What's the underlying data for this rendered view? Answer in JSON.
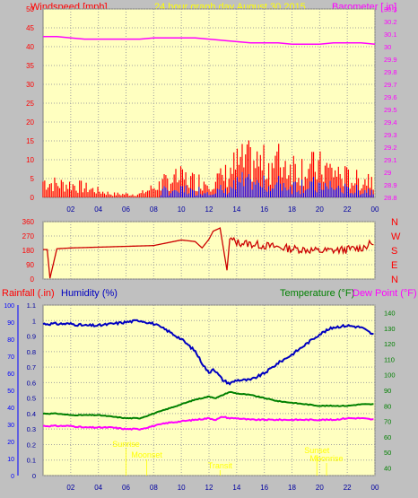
{
  "header": {
    "left_label": "Windspeed [mph]",
    "title": "24 hour graph day   August 30 2015",
    "right_label": "Barometer [.in]"
  },
  "colors": {
    "plot_bg": "#ffffc0",
    "frame_bg": "#c0c0c0",
    "wind": "#ff0000",
    "gust_overlay": "#0000ff",
    "barometer": "#ff00ff",
    "direction": "#cc0000",
    "humidity": "#0000c0",
    "temperature": "#008000",
    "dewpoint": "#ff00ff",
    "rain_axis": "#0000ff",
    "temp_axis": "#008000",
    "annotation": "#ffff00"
  },
  "chart_data": [
    {
      "type": "line",
      "panel": "wind-barometer",
      "x_ticks": [
        "02",
        "04",
        "06",
        "08",
        "10",
        "12",
        "14",
        "16",
        "18",
        "20",
        "22",
        "00"
      ],
      "ylim_left": [
        0,
        50
      ],
      "yticks_left": [
        "0",
        "5",
        "10",
        "15",
        "20",
        "25",
        "30",
        "35",
        "40",
        "45",
        "50"
      ],
      "ylim_right": [
        28.8,
        30.3
      ],
      "yticks_right": [
        "28.8",
        "28.9",
        "29",
        "29.1",
        "29.2",
        "29.3",
        "29.4",
        "29.5",
        "29.6",
        "29.7",
        "29.8",
        "29.9",
        "30",
        "30.1",
        "30.2",
        "30.3"
      ],
      "grid": true,
      "series": [
        {
          "name": "Barometer [.in]",
          "axis": "right",
          "x_hours": [
            0,
            1,
            2,
            3,
            4,
            5,
            6,
            7,
            8,
            9,
            10,
            11,
            12,
            13,
            14,
            15,
            16,
            17,
            18,
            19,
            20,
            21,
            22,
            23,
            24
          ],
          "values": [
            30.08,
            30.08,
            30.07,
            30.06,
            30.06,
            30.06,
            30.06,
            30.06,
            30.07,
            30.07,
            30.07,
            30.07,
            30.06,
            30.05,
            30.04,
            30.03,
            30.03,
            30.03,
            30.02,
            30.02,
            30.02,
            30.03,
            30.03,
            30.03,
            30.02
          ]
        },
        {
          "name": "Windspeed [mph]",
          "axis": "left",
          "style": "bars",
          "x_hours": [
            0,
            1,
            2,
            3,
            4,
            5,
            6,
            7,
            8,
            9,
            10,
            11,
            12,
            13,
            14,
            15,
            16,
            17,
            18,
            19,
            20,
            21,
            22,
            23,
            24
          ],
          "values": [
            5,
            4,
            4,
            3,
            2,
            1,
            1,
            1,
            3,
            5,
            6,
            5,
            5,
            6,
            10,
            11,
            10,
            11,
            10,
            9,
            9,
            8,
            6,
            5,
            7
          ]
        }
      ]
    },
    {
      "type": "line",
      "panel": "wind-direction",
      "x_ticks": [
        "02",
        "04",
        "06",
        "08",
        "10",
        "12",
        "14",
        "16",
        "18",
        "20",
        "22",
        "00"
      ],
      "ylim": [
        0,
        360
      ],
      "yticks": [
        "0",
        "90",
        "180",
        "270",
        "360"
      ],
      "direction_labels": [
        "N",
        "W",
        "S",
        "E",
        "N"
      ],
      "series": [
        {
          "name": "Wind direction",
          "x_hours": [
            0,
            0.3,
            0.5,
            1,
            2,
            4,
            6,
            8,
            10,
            11,
            11.5,
            12,
            12.3,
            12.8,
            13.3,
            13.5,
            14,
            15,
            16,
            17,
            18,
            19,
            20,
            21,
            22,
            23,
            24
          ],
          "values": [
            185,
            185,
            5,
            190,
            195,
            200,
            205,
            210,
            245,
            235,
            195,
            250,
            300,
            320,
            55,
            250,
            230,
            220,
            210,
            200,
            190,
            185,
            175,
            180,
            185,
            195,
            230
          ]
        }
      ]
    },
    {
      "type": "line",
      "panel": "rain-humidity-temperature",
      "x_ticks": [
        "02",
        "04",
        "06",
        "08",
        "10",
        "12",
        "14",
        "16",
        "18",
        "20",
        "22",
        "00"
      ],
      "ylim_rain": [
        0,
        1.1
      ],
      "yticks_rain": [
        "0",
        "0.1",
        "0.2",
        "0.3",
        "0.4",
        "0.5",
        "0.6",
        "0.7",
        "0.8",
        "0.9",
        "1",
        "1.1"
      ],
      "ylim_humidity": [
        0,
        100
      ],
      "yticks_humidity": [
        "0",
        "10",
        "20",
        "30",
        "40",
        "50",
        "60",
        "70",
        "80",
        "90",
        "100"
      ],
      "ylim_temp": [
        35,
        145
      ],
      "yticks_temp": [
        "40",
        "50",
        "60",
        "70",
        "80",
        "90",
        "100",
        "110",
        "120",
        "130",
        "140"
      ],
      "labels": {
        "rain": "Rainfall (.in)",
        "humidity": "Humidity (%)",
        "temperature": "Temperature (°F)",
        "dewpoint": "Dew Point (°F)"
      },
      "annotations": [
        {
          "text": "Sunrise",
          "x_hour": 6.0
        },
        {
          "text": "Moonset",
          "x_hour": 7.5
        },
        {
          "text": "Transit",
          "x_hour": 12.8
        },
        {
          "text": "Sunset",
          "x_hour": 19.8
        },
        {
          "text": "Moonrise",
          "x_hour": 20.5
        }
      ],
      "series": [
        {
          "name": "Humidity (%)",
          "axis": "humidity",
          "x_hours": [
            0,
            1,
            2,
            3,
            4,
            5,
            6,
            7,
            8,
            9,
            10,
            11,
            11.5,
            12,
            12.3,
            12.8,
            13,
            13.5,
            14,
            15,
            16,
            17,
            18,
            19,
            20,
            21,
            22,
            23,
            24
          ],
          "values": [
            89,
            89,
            89,
            88,
            88,
            89,
            90,
            91,
            89,
            85,
            80,
            73,
            66,
            60,
            63,
            58,
            56,
            54,
            56,
            56,
            60,
            66,
            71,
            77,
            83,
            87,
            88,
            87,
            82
          ]
        },
        {
          "name": "Temperature (°F)",
          "axis": "temp",
          "x_hours": [
            0,
            1,
            2,
            3,
            4,
            5,
            6,
            7,
            8,
            9,
            10,
            11,
            12,
            12.5,
            13,
            13.5,
            14,
            15,
            16,
            17,
            18,
            19,
            20,
            21,
            22,
            23,
            24
          ],
          "values": [
            75,
            75,
            74,
            74,
            74,
            73,
            72,
            72,
            75,
            78,
            81,
            84,
            86,
            85,
            87,
            89,
            88,
            87,
            85,
            83,
            82,
            81,
            80,
            80,
            80,
            81,
            81
          ]
        },
        {
          "name": "Dew Point (°F)",
          "axis": "temp",
          "x_hours": [
            0,
            1,
            2,
            3,
            4,
            5,
            6,
            7,
            8,
            9,
            10,
            11,
            12,
            12.5,
            13,
            13.5,
            14,
            15,
            16,
            17,
            18,
            19,
            20,
            21,
            22,
            23,
            24
          ],
          "values": [
            67,
            67,
            67,
            66,
            66,
            66,
            65,
            65,
            67,
            69,
            70,
            71,
            72,
            71,
            73,
            72,
            72,
            71,
            71,
            71,
            71,
            71,
            71,
            71,
            72,
            72,
            71
          ]
        }
      ]
    }
  ]
}
